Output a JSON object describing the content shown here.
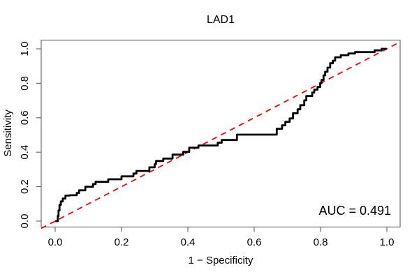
{
  "title": "LAD1",
  "axes": {
    "x_label": "1 − Specificity",
    "y_label": "Sensitivity",
    "x_tick_labels": [
      "0.0",
      "0.2",
      "0.4",
      "0.6",
      "0.8",
      "1.0"
    ],
    "x_tick_values": [
      0.0,
      0.2,
      0.4,
      0.6,
      0.8,
      1.0
    ],
    "y_tick_labels": [
      "0.0",
      "0.2",
      "0.4",
      "0.6",
      "0.8",
      "1.0"
    ],
    "y_tick_values": [
      0.0,
      0.2,
      0.4,
      0.6,
      0.8,
      1.0
    ]
  },
  "annotation": {
    "auc_label": "AUC = 0.491",
    "auc_value": 0.491
  },
  "colors": {
    "roc_curve": "#000000",
    "reference_line": "#ff0000",
    "axis": "#6e6e6e",
    "text": "#000000",
    "background": "#ffffff"
  },
  "chart_data": {
    "type": "line",
    "title": "LAD1",
    "xlabel": "1 − Specificity",
    "ylabel": "Sensitivity",
    "xlim": [
      0,
      1
    ],
    "ylim": [
      0,
      1
    ],
    "grid": false,
    "legend": "none",
    "auc": 0.491,
    "series": [
      {
        "name": "ROC step curve",
        "style": "step-solid",
        "color": "#000000",
        "points": [
          [
            0.0,
            0.0
          ],
          [
            0.008,
            0.0
          ],
          [
            0.01,
            0.03
          ],
          [
            0.013,
            0.062
          ],
          [
            0.017,
            0.094
          ],
          [
            0.023,
            0.114
          ],
          [
            0.031,
            0.131
          ],
          [
            0.044,
            0.148
          ],
          [
            0.065,
            0.15
          ],
          [
            0.072,
            0.163
          ],
          [
            0.091,
            0.179
          ],
          [
            0.114,
            0.199
          ],
          [
            0.122,
            0.215
          ],
          [
            0.16,
            0.228
          ],
          [
            0.2,
            0.243
          ],
          [
            0.236,
            0.26
          ],
          [
            0.245,
            0.276
          ],
          [
            0.284,
            0.291
          ],
          [
            0.3,
            0.312
          ],
          [
            0.304,
            0.331
          ],
          [
            0.326,
            0.349
          ],
          [
            0.354,
            0.363
          ],
          [
            0.386,
            0.386
          ],
          [
            0.404,
            0.402
          ],
          [
            0.432,
            0.426
          ],
          [
            0.49,
            0.439
          ],
          [
            0.502,
            0.455
          ],
          [
            0.548,
            0.471
          ],
          [
            0.668,
            0.502
          ],
          [
            0.684,
            0.536
          ],
          [
            0.694,
            0.556
          ],
          [
            0.707,
            0.576
          ],
          [
            0.717,
            0.596
          ],
          [
            0.731,
            0.626
          ],
          [
            0.739,
            0.649
          ],
          [
            0.751,
            0.673
          ],
          [
            0.757,
            0.701
          ],
          [
            0.775,
            0.726
          ],
          [
            0.781,
            0.746
          ],
          [
            0.791,
            0.763
          ],
          [
            0.799,
            0.779
          ],
          [
            0.803,
            0.801
          ],
          [
            0.809,
            0.819
          ],
          [
            0.814,
            0.846
          ],
          [
            0.821,
            0.867
          ],
          [
            0.829,
            0.891
          ],
          [
            0.837,
            0.916
          ],
          [
            0.844,
            0.931
          ],
          [
            0.861,
            0.951
          ],
          [
            0.884,
            0.963
          ],
          [
            0.904,
            0.973
          ],
          [
            0.963,
            0.981
          ],
          [
            0.984,
            0.991
          ],
          [
            1.0,
            1.0
          ]
        ]
      },
      {
        "name": "Chance reference line (y = x)",
        "style": "dashed",
        "color": "#ff0000",
        "points": [
          [
            0,
            0
          ],
          [
            1,
            1
          ]
        ]
      }
    ]
  }
}
